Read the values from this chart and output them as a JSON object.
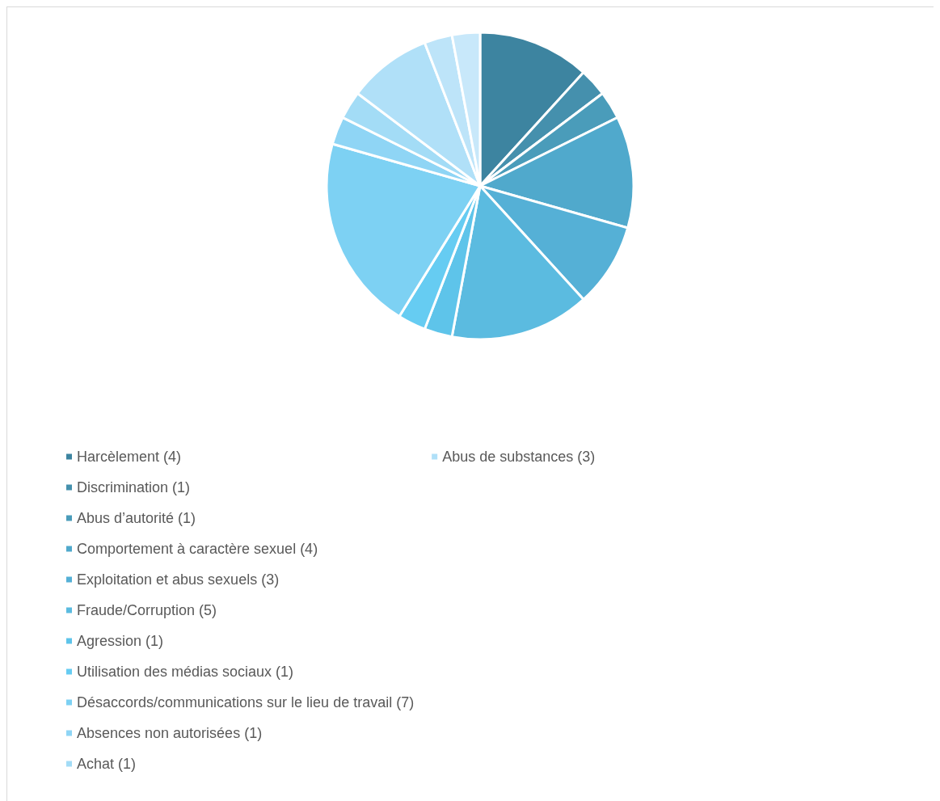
{
  "chart_data": {
    "type": "pie",
    "categories": [
      "Harcèlement (4)",
      "Discrimination (1)",
      "Abus d’autorité (1)",
      "Comportement à caractère sexuel (4)",
      "Exploitation et abus sexuels (3)",
      "Fraude/Corruption (5)",
      "Agression (1)",
      "Utilisation des médias sociaux (1)",
      "Désaccords/communications sur le lieu de travail (7)",
      "Absences non autorisées (1)",
      "Achat (1)",
      "Abus de substances (3)",
      null,
      null
    ],
    "values": [
      4,
      1,
      1,
      4,
      3,
      5,
      1,
      1,
      7,
      1,
      1,
      3,
      1,
      1
    ],
    "colors": [
      "#3d84a0",
      "#4590ad",
      "#4a9cba",
      "#50a9cc",
      "#55b0d6",
      "#5bbbe0",
      "#5ec4ea",
      "#66ccf2",
      "#7dd1f3",
      "#8fd5f5",
      "#a3dcf6",
      "#b0e0f8",
      "#bde4f9",
      "#c8e8fa"
    ],
    "legend": "bottom left"
  }
}
